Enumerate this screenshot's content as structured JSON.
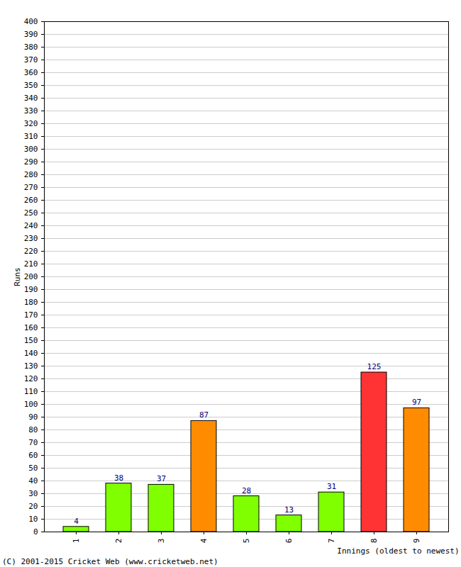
{
  "chart_data": {
    "type": "bar",
    "categories": [
      "1",
      "2",
      "3",
      "4",
      "5",
      "6",
      "7",
      "8",
      "9"
    ],
    "values": [
      4,
      38,
      37,
      87,
      28,
      13,
      31,
      125,
      97
    ],
    "colors": [
      "#80ff00",
      "#80ff00",
      "#80ff00",
      "#ff8c00",
      "#80ff00",
      "#80ff00",
      "#80ff00",
      "#ff3333",
      "#ff8c00"
    ],
    "x_label": "Innings (oldest to newest)",
    "y_label": "Runs",
    "caption": "(C) 2001-2015 Cricket Web (www.cricketweb.net)",
    "ylim": [
      0,
      400
    ],
    "yticks": [
      0,
      10,
      20,
      30,
      40,
      50,
      60,
      70,
      80,
      90,
      100,
      110,
      120,
      130,
      140,
      150,
      160,
      170,
      180,
      190,
      200,
      210,
      220,
      230,
      240,
      250,
      260,
      270,
      280,
      290,
      300,
      310,
      320,
      330,
      340,
      350,
      360,
      370,
      380,
      390,
      400
    ],
    "grid": true,
    "data_labels": true
  }
}
